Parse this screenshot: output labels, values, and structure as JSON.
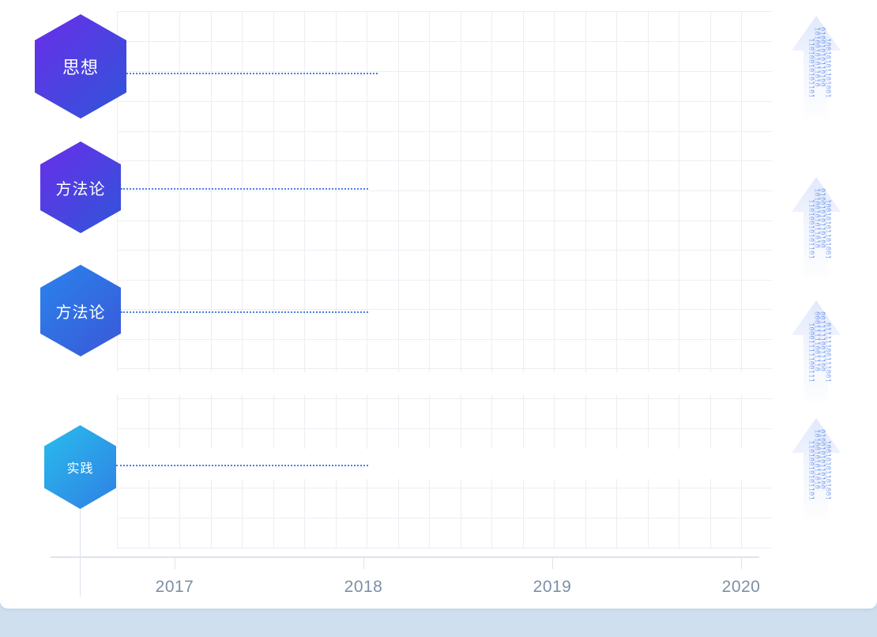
{
  "nodes": [
    {
      "label": "思想",
      "gradient": [
        "#6a2eea",
        "#2f55d8"
      ]
    },
    {
      "label": "方法论",
      "gradient": [
        "#6a2eea",
        "#2f55d8"
      ]
    },
    {
      "label": "方法论",
      "gradient": [
        "#2a83ec",
        "#3a58d8"
      ]
    },
    {
      "label": "实践",
      "gradient": [
        "#29bdec",
        "#2f7fe3"
      ]
    }
  ],
  "timeline": {
    "years": [
      "2017",
      "2018",
      "2019",
      "2020"
    ]
  },
  "arrows": [
    {
      "icon": "binary-up-arrow-icon",
      "digits": "1101001010110100"
    },
    {
      "icon": "binary-up-arrow-icon",
      "digits": "1101001010110100"
    },
    {
      "icon": "binary-up-arrow-icon",
      "digits": "1000111110011100"
    },
    {
      "icon": "binary-up-arrow-icon",
      "digits": "1101001010110100"
    }
  ],
  "colors": {
    "connector": "#4a7fe8",
    "grid": "#ebeef3",
    "axis": "#dde4ee",
    "axis_text": "#7e8fa6",
    "arrow": "#3f73e8",
    "band": "#cfdfee"
  }
}
